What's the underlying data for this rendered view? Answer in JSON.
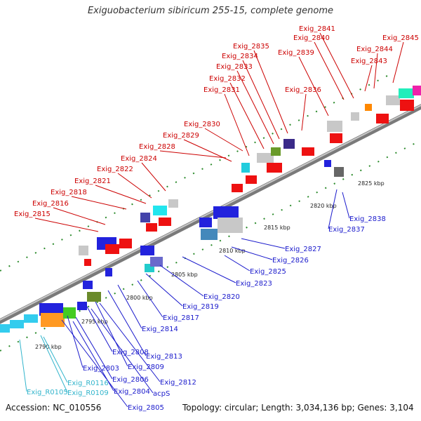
{
  "title": "Exiguobacterium sibiricum 255-15, complete genome",
  "footer": {
    "accession": "Accession: NC_010556",
    "topology": "Topology: circular; Length: 3,034,136 bp; Genes: 3,104"
  },
  "colors": {
    "forward_label": "#cc0000",
    "reverse_label": "#1a1acc",
    "rna_label": "#33b5cc",
    "backbone": "#8a8a8a",
    "tick": "#2a8a2a"
  },
  "ruler": [
    "2790 kbp",
    "2795 kbp",
    "2800 kbp",
    "2805 kbp",
    "2810 kbp",
    "2815 kbp",
    "2820 kbp",
    "2825 kbp"
  ],
  "forward_labels": [
    {
      "text": "Exig_2815",
      "strand": "forward"
    },
    {
      "text": "Exig_2816",
      "strand": "forward"
    },
    {
      "text": "Exig_2818",
      "strand": "forward"
    },
    {
      "text": "Exig_2821",
      "strand": "forward"
    },
    {
      "text": "Exig_2822",
      "strand": "forward"
    },
    {
      "text": "Exig_2824",
      "strand": "forward"
    },
    {
      "text": "Exig_2828",
      "strand": "forward"
    },
    {
      "text": "Exig_2829",
      "strand": "forward"
    },
    {
      "text": "Exig_2830",
      "strand": "forward"
    },
    {
      "text": "Exig_2831",
      "strand": "forward"
    },
    {
      "text": "Exig_2832",
      "strand": "forward"
    },
    {
      "text": "Exig_2833",
      "strand": "forward"
    },
    {
      "text": "Exig_2834",
      "strand": "forward"
    },
    {
      "text": "Exig_2835",
      "strand": "forward"
    },
    {
      "text": "Exig_2836",
      "strand": "forward"
    },
    {
      "text": "Exig_2839",
      "strand": "forward"
    },
    {
      "text": "Exig_2840",
      "strand": "forward"
    },
    {
      "text": "Exig_2841",
      "strand": "forward"
    },
    {
      "text": "Exig_2843",
      "strand": "forward"
    },
    {
      "text": "Exig_2844",
      "strand": "forward"
    },
    {
      "text": "Exig_2845",
      "strand": "forward"
    }
  ],
  "reverse_labels": [
    {
      "text": "Exig_2838"
    },
    {
      "text": "Exig_2837"
    },
    {
      "text": "Exig_2827"
    },
    {
      "text": "Exig_2826"
    },
    {
      "text": "Exig_2825"
    },
    {
      "text": "Exig_2823"
    },
    {
      "text": "Exig_2820"
    },
    {
      "text": "Exig_2819"
    },
    {
      "text": "Exig_2817"
    },
    {
      "text": "Exig_2814"
    },
    {
      "text": "Exig_2813"
    },
    {
      "text": "Exig_2808"
    },
    {
      "text": "Exig_2809"
    },
    {
      "text": "Exig_2812"
    },
    {
      "text": "Exig_2803"
    },
    {
      "text": "Exig_2806"
    },
    {
      "text": "acpS"
    },
    {
      "text": "Exig_2804"
    },
    {
      "text": "Exig_2805"
    }
  ],
  "rna_labels": [
    {
      "text": "Exig_R0116"
    },
    {
      "text": "Exig_R0109"
    },
    {
      "text": "Exig_R0105"
    }
  ]
}
